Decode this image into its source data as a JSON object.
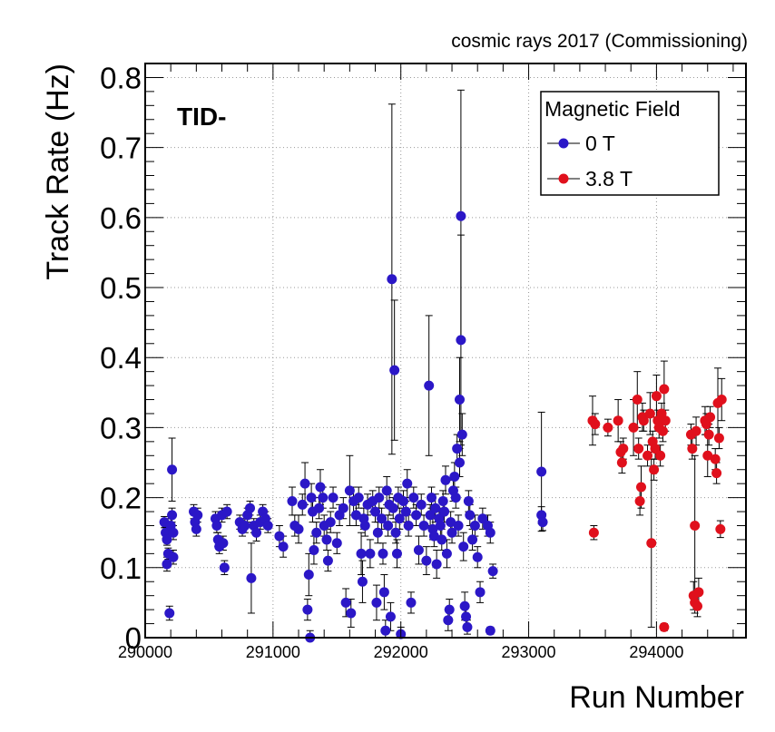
{
  "chart_data": {
    "type": "scatter",
    "title": "cosmic rays 2017 (Commissioning)",
    "annotation": "TID-",
    "xlabel": "Run Number",
    "ylabel": "Track Rate (Hz)",
    "xlim": [
      290000,
      294700
    ],
    "ylim": [
      0,
      0.82
    ],
    "x_ticks": [
      "290000",
      "291000",
      "292000",
      "293000",
      "294000"
    ],
    "y_ticks": [
      "0",
      "0.1",
      "0.2",
      "0.3",
      "0.4",
      "0.5",
      "0.6",
      "0.7",
      "0.8"
    ],
    "grid": true,
    "legend": {
      "title": "Magnetic Field",
      "placement": "top-right",
      "entries": [
        "0 T",
        "3.8 T"
      ]
    },
    "series": [
      {
        "name": "0 T",
        "color": "#2b17c7",
        "points": [
          [
            290150,
            0.165,
            0.008
          ],
          [
            290160,
            0.15,
            0.008
          ],
          [
            290170,
            0.14,
            0.008
          ],
          [
            290170,
            0.105,
            0.01
          ],
          [
            290180,
            0.12,
            0.008
          ],
          [
            290190,
            0.035,
            0.01
          ],
          [
            290200,
            0.16,
            0.01
          ],
          [
            290210,
            0.24,
            0.045
          ],
          [
            290210,
            0.175,
            0.01
          ],
          [
            290220,
            0.15,
            0.01
          ],
          [
            290220,
            0.115,
            0.01
          ],
          [
            290380,
            0.18,
            0.01
          ],
          [
            290390,
            0.165,
            0.01
          ],
          [
            290400,
            0.155,
            0.01
          ],
          [
            290410,
            0.175,
            0.01
          ],
          [
            290550,
            0.17,
            0.01
          ],
          [
            290560,
            0.16,
            0.01
          ],
          [
            290570,
            0.14,
            0.01
          ],
          [
            290580,
            0.13,
            0.01
          ],
          [
            290600,
            0.175,
            0.01
          ],
          [
            290610,
            0.135,
            0.01
          ],
          [
            290620,
            0.1,
            0.01
          ],
          [
            290640,
            0.18,
            0.01
          ],
          [
            290740,
            0.165,
            0.01
          ],
          [
            290760,
            0.155,
            0.01
          ],
          [
            290780,
            0.16,
            0.01
          ],
          [
            290800,
            0.175,
            0.01
          ],
          [
            290820,
            0.185,
            0.01
          ],
          [
            290830,
            0.085,
            0.05
          ],
          [
            290850,
            0.16,
            0.01
          ],
          [
            290870,
            0.15,
            0.012
          ],
          [
            290900,
            0.165,
            0.01
          ],
          [
            290920,
            0.18,
            0.01
          ],
          [
            290940,
            0.17,
            0.01
          ],
          [
            290960,
            0.16,
            0.01
          ],
          [
            291050,
            0.145,
            0.015
          ],
          [
            291080,
            0.13,
            0.015
          ],
          [
            291150,
            0.195,
            0.02
          ],
          [
            291170,
            0.16,
            0.015
          ],
          [
            291200,
            0.155,
            0.02
          ],
          [
            291230,
            0.19,
            0.015
          ],
          [
            291250,
            0.22,
            0.03
          ],
          [
            291270,
            0.04,
            0.015
          ],
          [
            291280,
            0.09,
            0.03
          ],
          [
            291290,
            0.0,
            0.01
          ],
          [
            291300,
            0.2,
            0.02
          ],
          [
            291310,
            0.18,
            0.015
          ],
          [
            291320,
            0.125,
            0.02
          ],
          [
            291340,
            0.15,
            0.015
          ],
          [
            291360,
            0.185,
            0.015
          ],
          [
            291370,
            0.215,
            0.025
          ],
          [
            291390,
            0.2,
            0.015
          ],
          [
            291400,
            0.16,
            0.015
          ],
          [
            291420,
            0.14,
            0.015
          ],
          [
            291430,
            0.11,
            0.015
          ],
          [
            291450,
            0.165,
            0.015
          ],
          [
            291470,
            0.2,
            0.015
          ],
          [
            291500,
            0.135,
            0.015
          ],
          [
            291520,
            0.175,
            0.015
          ],
          [
            291550,
            0.185,
            0.015
          ],
          [
            291570,
            0.05,
            0.02
          ],
          [
            291600,
            0.21,
            0.05
          ],
          [
            291610,
            0.035,
            0.02
          ],
          [
            291630,
            0.195,
            0.02
          ],
          [
            291650,
            0.175,
            0.015
          ],
          [
            291670,
            0.2,
            0.015
          ],
          [
            291690,
            0.12,
            0.03
          ],
          [
            291700,
            0.08,
            0.03
          ],
          [
            291710,
            0.17,
            0.015
          ],
          [
            291720,
            0.16,
            0.015
          ],
          [
            291740,
            0.19,
            0.015
          ],
          [
            291760,
            0.12,
            0.02
          ],
          [
            291780,
            0.195,
            0.015
          ],
          [
            291800,
            0.18,
            0.015
          ],
          [
            291810,
            0.05,
            0.025
          ],
          [
            291820,
            0.15,
            0.015
          ],
          [
            291830,
            0.2,
            0.015
          ],
          [
            291850,
            0.17,
            0.015
          ],
          [
            291860,
            0.12,
            0.015
          ],
          [
            291870,
            0.065,
            0.025
          ],
          [
            291880,
            0.01,
            0.015
          ],
          [
            291890,
            0.21,
            0.02
          ],
          [
            291900,
            0.16,
            0.015
          ],
          [
            291910,
            0.19,
            0.015
          ],
          [
            291920,
            0.03,
            0.02
          ],
          [
            291930,
            0.512,
            0.25
          ],
          [
            291940,
            0.185,
            0.015
          ],
          [
            291950,
            0.382,
            0.1
          ],
          [
            291960,
            0.15,
            0.015
          ],
          [
            291970,
            0.12,
            0.02
          ],
          [
            291980,
            0.2,
            0.015
          ],
          [
            291990,
            0.17,
            0.015
          ],
          [
            292000,
            0.005,
            0.01
          ],
          [
            292020,
            0.195,
            0.015
          ],
          [
            292040,
            0.18,
            0.015
          ],
          [
            292050,
            0.22,
            0.02
          ],
          [
            292060,
            0.16,
            0.015
          ],
          [
            292080,
            0.05,
            0.015
          ],
          [
            292100,
            0.2,
            0.015
          ],
          [
            292120,
            0.175,
            0.015
          ],
          [
            292140,
            0.125,
            0.02
          ],
          [
            292160,
            0.19,
            0.015
          ],
          [
            292180,
            0.16,
            0.015
          ],
          [
            292200,
            0.11,
            0.02
          ],
          [
            292220,
            0.36,
            0.1
          ],
          [
            292230,
            0.175,
            0.015
          ],
          [
            292240,
            0.2,
            0.015
          ],
          [
            292250,
            0.155,
            0.015
          ],
          [
            292260,
            0.145,
            0.015
          ],
          [
            292270,
            0.185,
            0.02
          ],
          [
            292280,
            0.105,
            0.02
          ],
          [
            292300,
            0.17,
            0.015
          ],
          [
            292310,
            0.16,
            0.015
          ],
          [
            292320,
            0.14,
            0.015
          ],
          [
            292330,
            0.195,
            0.015
          ],
          [
            292340,
            0.18,
            0.015
          ],
          [
            292350,
            0.225,
            0.02
          ],
          [
            292360,
            0.12,
            0.02
          ],
          [
            292370,
            0.025,
            0.015
          ],
          [
            292380,
            0.04,
            0.015
          ],
          [
            292390,
            0.165,
            0.015
          ],
          [
            292400,
            0.15,
            0.015
          ],
          [
            292410,
            0.21,
            0.015
          ],
          [
            292420,
            0.23,
            0.02
          ],
          [
            292430,
            0.2,
            0.015
          ],
          [
            292440,
            0.27,
            0.02
          ],
          [
            292450,
            0.16,
            0.015
          ],
          [
            292460,
            0.25,
            0.02
          ],
          [
            292460,
            0.34,
            0.06
          ],
          [
            292470,
            0.425,
            0.15
          ],
          [
            292470,
            0.602,
            0.18
          ],
          [
            292480,
            0.29,
            0.03
          ],
          [
            292490,
            0.13,
            0.02
          ],
          [
            292500,
            0.045,
            0.02
          ],
          [
            292510,
            0.03,
            0.015
          ],
          [
            292520,
            0.015,
            0.01
          ],
          [
            292530,
            0.195,
            0.015
          ],
          [
            292540,
            0.175,
            0.015
          ],
          [
            292560,
            0.14,
            0.015
          ],
          [
            292580,
            0.16,
            0.015
          ],
          [
            292600,
            0.115,
            0.015
          ],
          [
            292620,
            0.065,
            0.015
          ],
          [
            292640,
            0.17,
            0.015
          ],
          [
            292680,
            0.16,
            0.015
          ],
          [
            292700,
            0.15,
            0.015
          ],
          [
            292720,
            0.095,
            0.01
          ],
          [
            292700,
            0.01,
            0.005
          ],
          [
            293100,
            0.237,
            0.085
          ],
          [
            293100,
            0.175,
            0.012
          ],
          [
            293110,
            0.165,
            0.012
          ]
        ]
      },
      {
        "name": "3.8 T",
        "color": "#e0101c",
        "points": [
          [
            293500,
            0.31,
            0.035
          ],
          [
            293510,
            0.15,
            0.01
          ],
          [
            293520,
            0.305,
            0.015
          ],
          [
            293620,
            0.3,
            0.012
          ],
          [
            293700,
            0.31,
            0.03
          ],
          [
            293720,
            0.265,
            0.015
          ],
          [
            293730,
            0.25,
            0.015
          ],
          [
            293740,
            0.27,
            0.015
          ],
          [
            293820,
            0.3,
            0.04
          ],
          [
            293850,
            0.34,
            0.04
          ],
          [
            293860,
            0.27,
            0.015
          ],
          [
            293870,
            0.195,
            0.02
          ],
          [
            293880,
            0.215,
            0.03
          ],
          [
            293890,
            0.315,
            0.02
          ],
          [
            293900,
            0.31,
            0.015
          ],
          [
            293930,
            0.26,
            0.015
          ],
          [
            293950,
            0.32,
            0.03
          ],
          [
            293960,
            0.135,
            0.12
          ],
          [
            293970,
            0.28,
            0.015
          ],
          [
            293980,
            0.24,
            0.015
          ],
          [
            293990,
            0.27,
            0.015
          ],
          [
            294000,
            0.345,
            0.03
          ],
          [
            294010,
            0.31,
            0.015
          ],
          [
            294020,
            0.3,
            0.015
          ],
          [
            294030,
            0.26,
            0.015
          ],
          [
            294040,
            0.32,
            0.015
          ],
          [
            294050,
            0.295,
            0.015
          ],
          [
            294060,
            0.355,
            0.04
          ],
          [
            294060,
            0.015,
            0.005
          ],
          [
            294070,
            0.31,
            0.015
          ],
          [
            294270,
            0.29,
            0.015
          ],
          [
            294280,
            0.27,
            0.015
          ],
          [
            294290,
            0.06,
            0.02
          ],
          [
            294300,
            0.16,
            0.1
          ],
          [
            294300,
            0.05,
            0.015
          ],
          [
            294310,
            0.295,
            0.02
          ],
          [
            294320,
            0.045,
            0.015
          ],
          [
            294330,
            0.065,
            0.02
          ],
          [
            294380,
            0.31,
            0.02
          ],
          [
            294390,
            0.305,
            0.015
          ],
          [
            294400,
            0.26,
            0.03
          ],
          [
            294410,
            0.29,
            0.015
          ],
          [
            294420,
            0.315,
            0.015
          ],
          [
            294460,
            0.255,
            0.015
          ],
          [
            294470,
            0.235,
            0.015
          ],
          [
            294480,
            0.335,
            0.05
          ],
          [
            294490,
            0.285,
            0.015
          ],
          [
            294500,
            0.155,
            0.012
          ],
          [
            294510,
            0.34,
            0.03
          ]
        ]
      }
    ]
  }
}
